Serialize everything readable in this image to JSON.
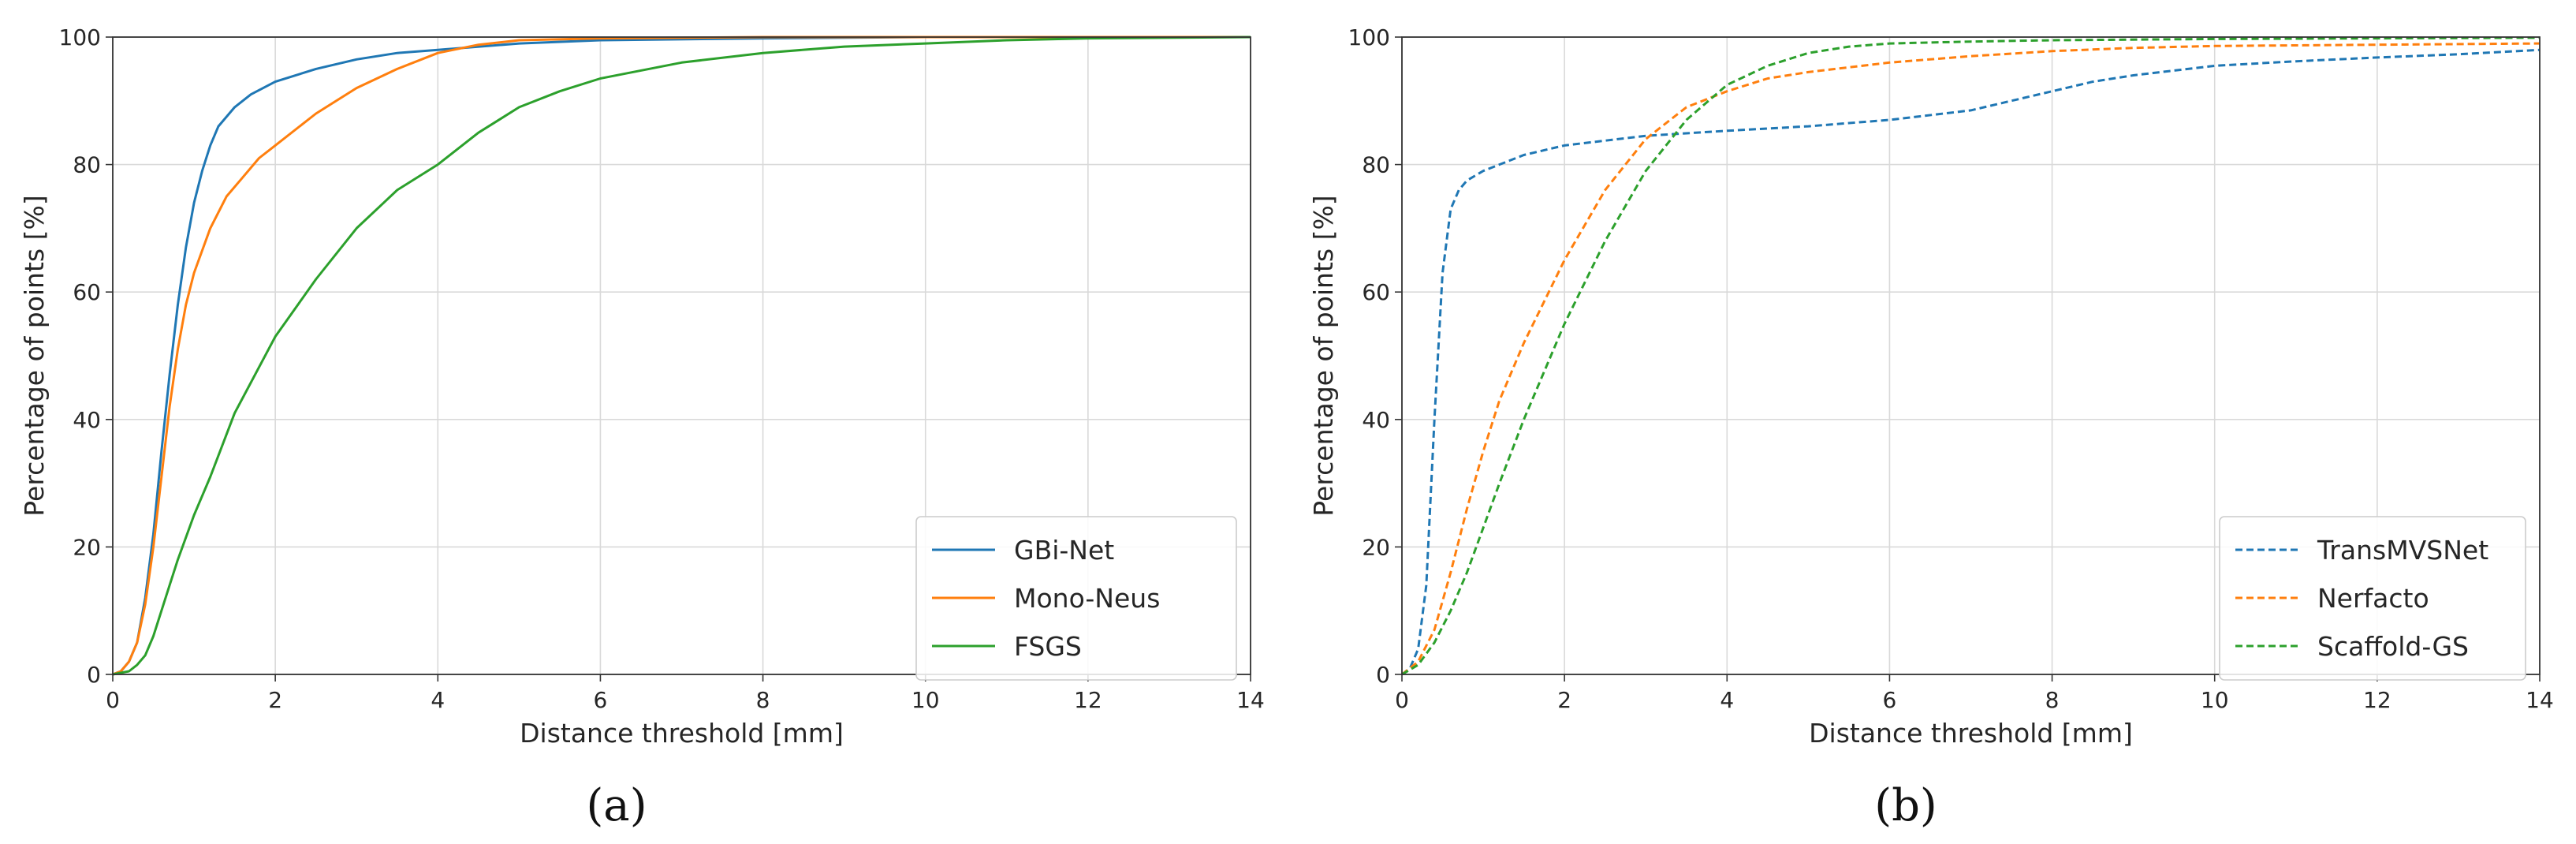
{
  "chart_data": [
    {
      "type": "line",
      "panel_label": "(a)",
      "xlabel": "Distance threshold [mm]",
      "ylabel": "Percentage of points [%]",
      "xlim": [
        0,
        14
      ],
      "ylim": [
        0,
        100
      ],
      "xticks": [
        0,
        2,
        4,
        6,
        8,
        10,
        12,
        14
      ],
      "yticks": [
        0,
        20,
        40,
        60,
        80,
        100
      ],
      "grid": true,
      "legend_position": "bottom-right",
      "series": [
        {
          "name": "GBi-Net",
          "color": "#1f77b4",
          "style": "solid",
          "x": [
            0,
            0.1,
            0.2,
            0.3,
            0.4,
            0.5,
            0.6,
            0.7,
            0.8,
            0.9,
            1.0,
            1.1,
            1.2,
            1.3,
            1.5,
            1.7,
            2.0,
            2.5,
            3.0,
            3.5,
            4.0,
            5.0,
            6.0,
            8.0,
            10.0,
            12.0,
            14.0
          ],
          "y": [
            0,
            0.5,
            2,
            5,
            12,
            22,
            35,
            47,
            58,
            67,
            74,
            79,
            83,
            86,
            89,
            91,
            93,
            95,
            96.5,
            97.5,
            98,
            99,
            99.5,
            99.8,
            100,
            100,
            100
          ]
        },
        {
          "name": "Mono-Neus",
          "color": "#ff7f0e",
          "style": "solid",
          "x": [
            0,
            0.1,
            0.2,
            0.3,
            0.4,
            0.5,
            0.6,
            0.7,
            0.8,
            0.9,
            1.0,
            1.2,
            1.4,
            1.6,
            1.8,
            2.0,
            2.5,
            3.0,
            3.5,
            4.0,
            4.5,
            5.0,
            6.0,
            8.0,
            10.0,
            12.0,
            14.0
          ],
          "y": [
            0,
            0.5,
            2,
            5,
            11,
            20,
            31,
            42,
            51,
            58,
            63,
            70,
            75,
            78,
            81,
            83,
            88,
            92,
            95,
            97.5,
            98.8,
            99.5,
            99.8,
            100,
            100,
            100,
            100
          ]
        },
        {
          "name": "FSGS",
          "color": "#2ca02c",
          "style": "solid",
          "x": [
            0,
            0.2,
            0.3,
            0.4,
            0.5,
            0.6,
            0.7,
            0.8,
            1.0,
            1.2,
            1.5,
            2.0,
            2.5,
            3.0,
            3.5,
            4.0,
            4.5,
            5.0,
            5.5,
            6.0,
            7.0,
            8.0,
            9.0,
            10.0,
            11.0,
            12.0,
            14.0
          ],
          "y": [
            0,
            0.5,
            1.5,
            3,
            6,
            10,
            14,
            18,
            25,
            31,
            41,
            53,
            62,
            70,
            76,
            80,
            85,
            89,
            91.5,
            93.5,
            96,
            97.5,
            98.5,
            99,
            99.5,
            99.8,
            100
          ]
        }
      ]
    },
    {
      "type": "line",
      "panel_label": "(b)",
      "xlabel": "Distance threshold [mm]",
      "ylabel": "Percentage of points [%]",
      "xlim": [
        0,
        14
      ],
      "ylim": [
        0,
        100
      ],
      "xticks": [
        0,
        2,
        4,
        6,
        8,
        10,
        12,
        14
      ],
      "yticks": [
        0,
        20,
        40,
        60,
        80,
        100
      ],
      "grid": true,
      "legend_position": "bottom-right",
      "series": [
        {
          "name": "TransMVSNet",
          "color": "#1f77b4",
          "style": "dashed",
          "x": [
            0,
            0.1,
            0.2,
            0.3,
            0.4,
            0.5,
            0.6,
            0.7,
            0.8,
            1.0,
            1.5,
            2.0,
            3.0,
            4.0,
            5.0,
            6.0,
            7.0,
            7.5,
            8.0,
            8.5,
            9.0,
            10.0,
            11.0,
            12.0,
            13.0,
            14.0
          ],
          "y": [
            0,
            1,
            4,
            14,
            40,
            63,
            73,
            76,
            77.5,
            79,
            81.5,
            83,
            84.5,
            85.3,
            86,
            87,
            88.5,
            90,
            91.5,
            93,
            94,
            95.5,
            96.2,
            96.8,
            97.3,
            98
          ]
        },
        {
          "name": "Nerfacto",
          "color": "#ff7f0e",
          "style": "dashed",
          "x": [
            0,
            0.2,
            0.4,
            0.6,
            0.8,
            1.0,
            1.2,
            1.5,
            2.0,
            2.5,
            3.0,
            3.5,
            4.0,
            4.5,
            5.0,
            6.0,
            7.0,
            8.0,
            9.0,
            10.0,
            12.0,
            14.0
          ],
          "y": [
            0,
            2,
            7,
            16,
            26,
            35,
            43,
            52,
            65,
            76,
            84,
            89,
            91.5,
            93.5,
            94.5,
            96,
            97,
            97.8,
            98.3,
            98.6,
            98.8,
            99
          ]
        },
        {
          "name": "Scaffold-GS",
          "color": "#2ca02c",
          "style": "dashed",
          "x": [
            0,
            0.2,
            0.4,
            0.6,
            0.8,
            1.0,
            1.2,
            1.5,
            2.0,
            2.5,
            3.0,
            3.5,
            4.0,
            4.5,
            5.0,
            5.5,
            6.0,
            7.0,
            8.0,
            10.0,
            12.0,
            14.0
          ],
          "y": [
            0,
            1.5,
            5,
            10,
            16,
            23,
            30,
            40,
            55,
            68,
            79,
            87,
            92.5,
            95.5,
            97.5,
            98.5,
            99,
            99.3,
            99.5,
            99.7,
            99.8,
            99.9
          ]
        }
      ]
    }
  ]
}
